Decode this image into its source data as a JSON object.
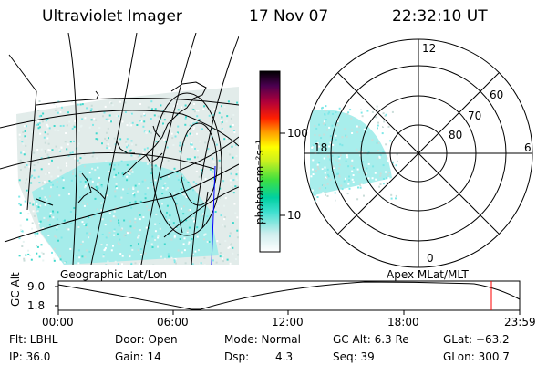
{
  "header": {
    "title": "Ultraviolet Imager",
    "date": "17 Nov 07",
    "time": "22:32:10 UT"
  },
  "map": {
    "label": "Geographic Lat/Lon"
  },
  "polar": {
    "label": "Apex MLat/MLT",
    "mlt_labels": [
      "12",
      "18",
      "6",
      "0"
    ],
    "mlat_labels": [
      "60",
      "70",
      "80"
    ]
  },
  "colorbar": {
    "unit_label": "photon cm⁻²s⁻¹",
    "ticks": [
      "100",
      "10"
    ],
    "scale": "log"
  },
  "altitude_strip": {
    "ylabel": "GC Alt",
    "yticks": [
      "9.0",
      "1.8"
    ],
    "xticks": [
      "00:00",
      "06:00",
      "12:00",
      "18:00",
      "23:59"
    ]
  },
  "status": {
    "flt": "Flt: LBHL",
    "door": "Door: Open",
    "mode": "Mode: Normal",
    "gc_alt": "GC Alt: 6.3 Re",
    "glat": "GLat: −63.2",
    "ip": "IP: 36.0",
    "gain": "Gain: 14",
    "dsp_label": "Dsp:",
    "dsp_value": "4.3",
    "seq": "Seq: 39",
    "glon": "GLon: 300.7"
  },
  "colors": {
    "aurora": "#7fe8e8",
    "aurora_dense": "#3fd8cc",
    "haze": "#c9ddd9",
    "marker": "#ff0000",
    "meridian": "#0000ff"
  }
}
